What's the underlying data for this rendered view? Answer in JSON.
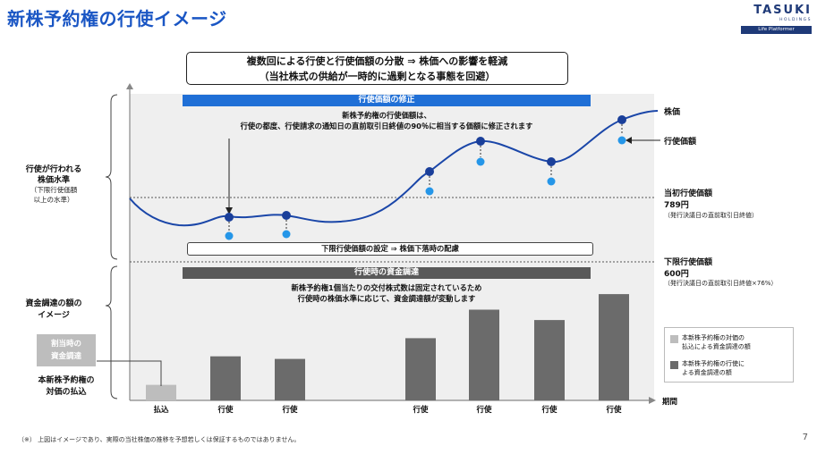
{
  "title": "新株予約権の行使イメージ",
  "logo": {
    "name": "TASUKI",
    "sub": "HOLDINGS",
    "tagline": "Life Platformer"
  },
  "summary": {
    "line1": "複数回による行使と行使価額の分散 ⇒ 株価への影響を軽減",
    "line2": "（当社株式の供給が一時的に過剰となる事態を回避）"
  },
  "upper_panel": {
    "header": "行使価額の修正",
    "caption_line1": "新株予約権の行使価額は、",
    "caption_line2": "行使の都度、行使請求の通知日の直前取引日終値の90％に相当する価額に修正されます",
    "floor_box": "下限行使価額の設定 ⇒ 株価下落時の配慮",
    "left_label_line1": "行使が行われる",
    "left_label_line2": "株価水準",
    "left_label_sub1": "（下限行使価額",
    "left_label_sub2": "以上の水準）"
  },
  "right_labels": {
    "stock_price": "株価",
    "exercise_price": "行使価額",
    "initial_label": "当初行使価額",
    "initial_value": "789円",
    "initial_note": "（発行決議日の直前取引日終値）",
    "floor_label": "下限行使価額",
    "floor_value": "600円",
    "floor_note": "（発行決議日の直前取引日終値×76%）"
  },
  "lower_panel": {
    "header": "行使時の資金調達",
    "caption_line1": "新株予約権1個当たりの交付株式数は固定されているため",
    "caption_line2": "行使時の株価水準に応じて、資金調達額が変動します",
    "left_label_line1": "資金調達の額の",
    "left_label_line2": "イメージ",
    "allotment_box_line1": "割当時の",
    "allotment_box_line2": "資金調達",
    "payment_label_line1": "本新株予約権の",
    "payment_label_line2": "対価の払込",
    "x_axis_label": "期間"
  },
  "legend": [
    {
      "text_line1": "本新株予約権の対価の",
      "text_line2": "払込による資金調達の額",
      "color": "#bdbdbd"
    },
    {
      "text_line1": "本新株予約権の行使に",
      "text_line2": "よる資金調達の額",
      "color": "#6b6b6b"
    }
  ],
  "chart_data": {
    "type": "bar",
    "categories": [
      "払込",
      "行使",
      "行使",
      "行使",
      "行使",
      "行使",
      "行使"
    ],
    "values": [
      0.6,
      1.7,
      1.6,
      2.4,
      3.5,
      3.1,
      4.1
    ],
    "colors": [
      "#bdbdbd",
      "#6b6b6b",
      "#6b6b6b",
      "#6b6b6b",
      "#6b6b6b",
      "#6b6b6b",
      "#6b6b6b"
    ]
  },
  "footnote": "（※） 上図はイメージであり、実際の当社株価の推移を予想若しくは保証するものではありません。",
  "page_number": "7"
}
